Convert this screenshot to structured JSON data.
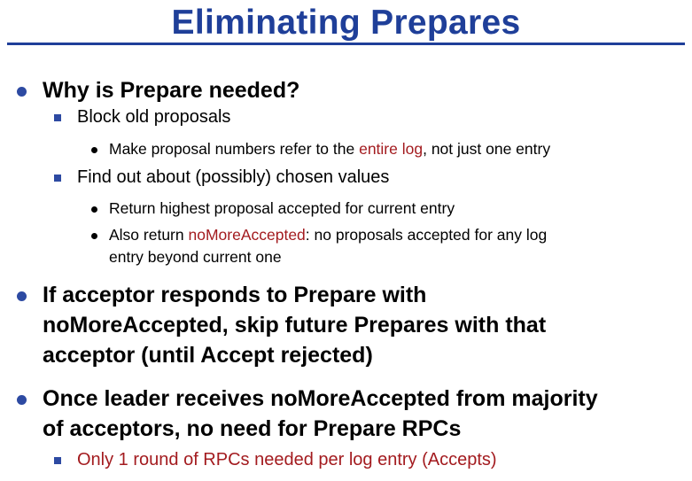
{
  "title": "Eliminating Prepares",
  "colors": {
    "title": "#1f3f99",
    "highlight": "#a31b1f",
    "bullet": "#2d4aa2"
  },
  "b1": {
    "text": "Why is Prepare needed?"
  },
  "b1a": {
    "text": "Block old proposals"
  },
  "b1a1": {
    "pre": "Make proposal numbers refer to the ",
    "hl": "entire log",
    "post": ", not just one entry"
  },
  "b1b": {
    "text": "Find out about (possibly) chosen values"
  },
  "b1b1": {
    "text": "Return highest proposal accepted for current entry"
  },
  "b1b2": {
    "pre": "Also return ",
    "hl": "noMoreAccepted",
    "post": ": no proposals accepted for any log",
    "line2": "entry beyond current one"
  },
  "b2": {
    "line1": "If acceptor responds to Prepare with",
    "line2": "noMoreAccepted, skip future Prepares with that",
    "line3": "acceptor (until Accept rejected)"
  },
  "b3": {
    "line1": "Once leader receives noMoreAccepted from majority",
    "line2": "of acceptors, no need for Prepare RPCs"
  },
  "b3a": {
    "text": "Only 1 round of RPCs needed per log entry (Accepts)"
  }
}
